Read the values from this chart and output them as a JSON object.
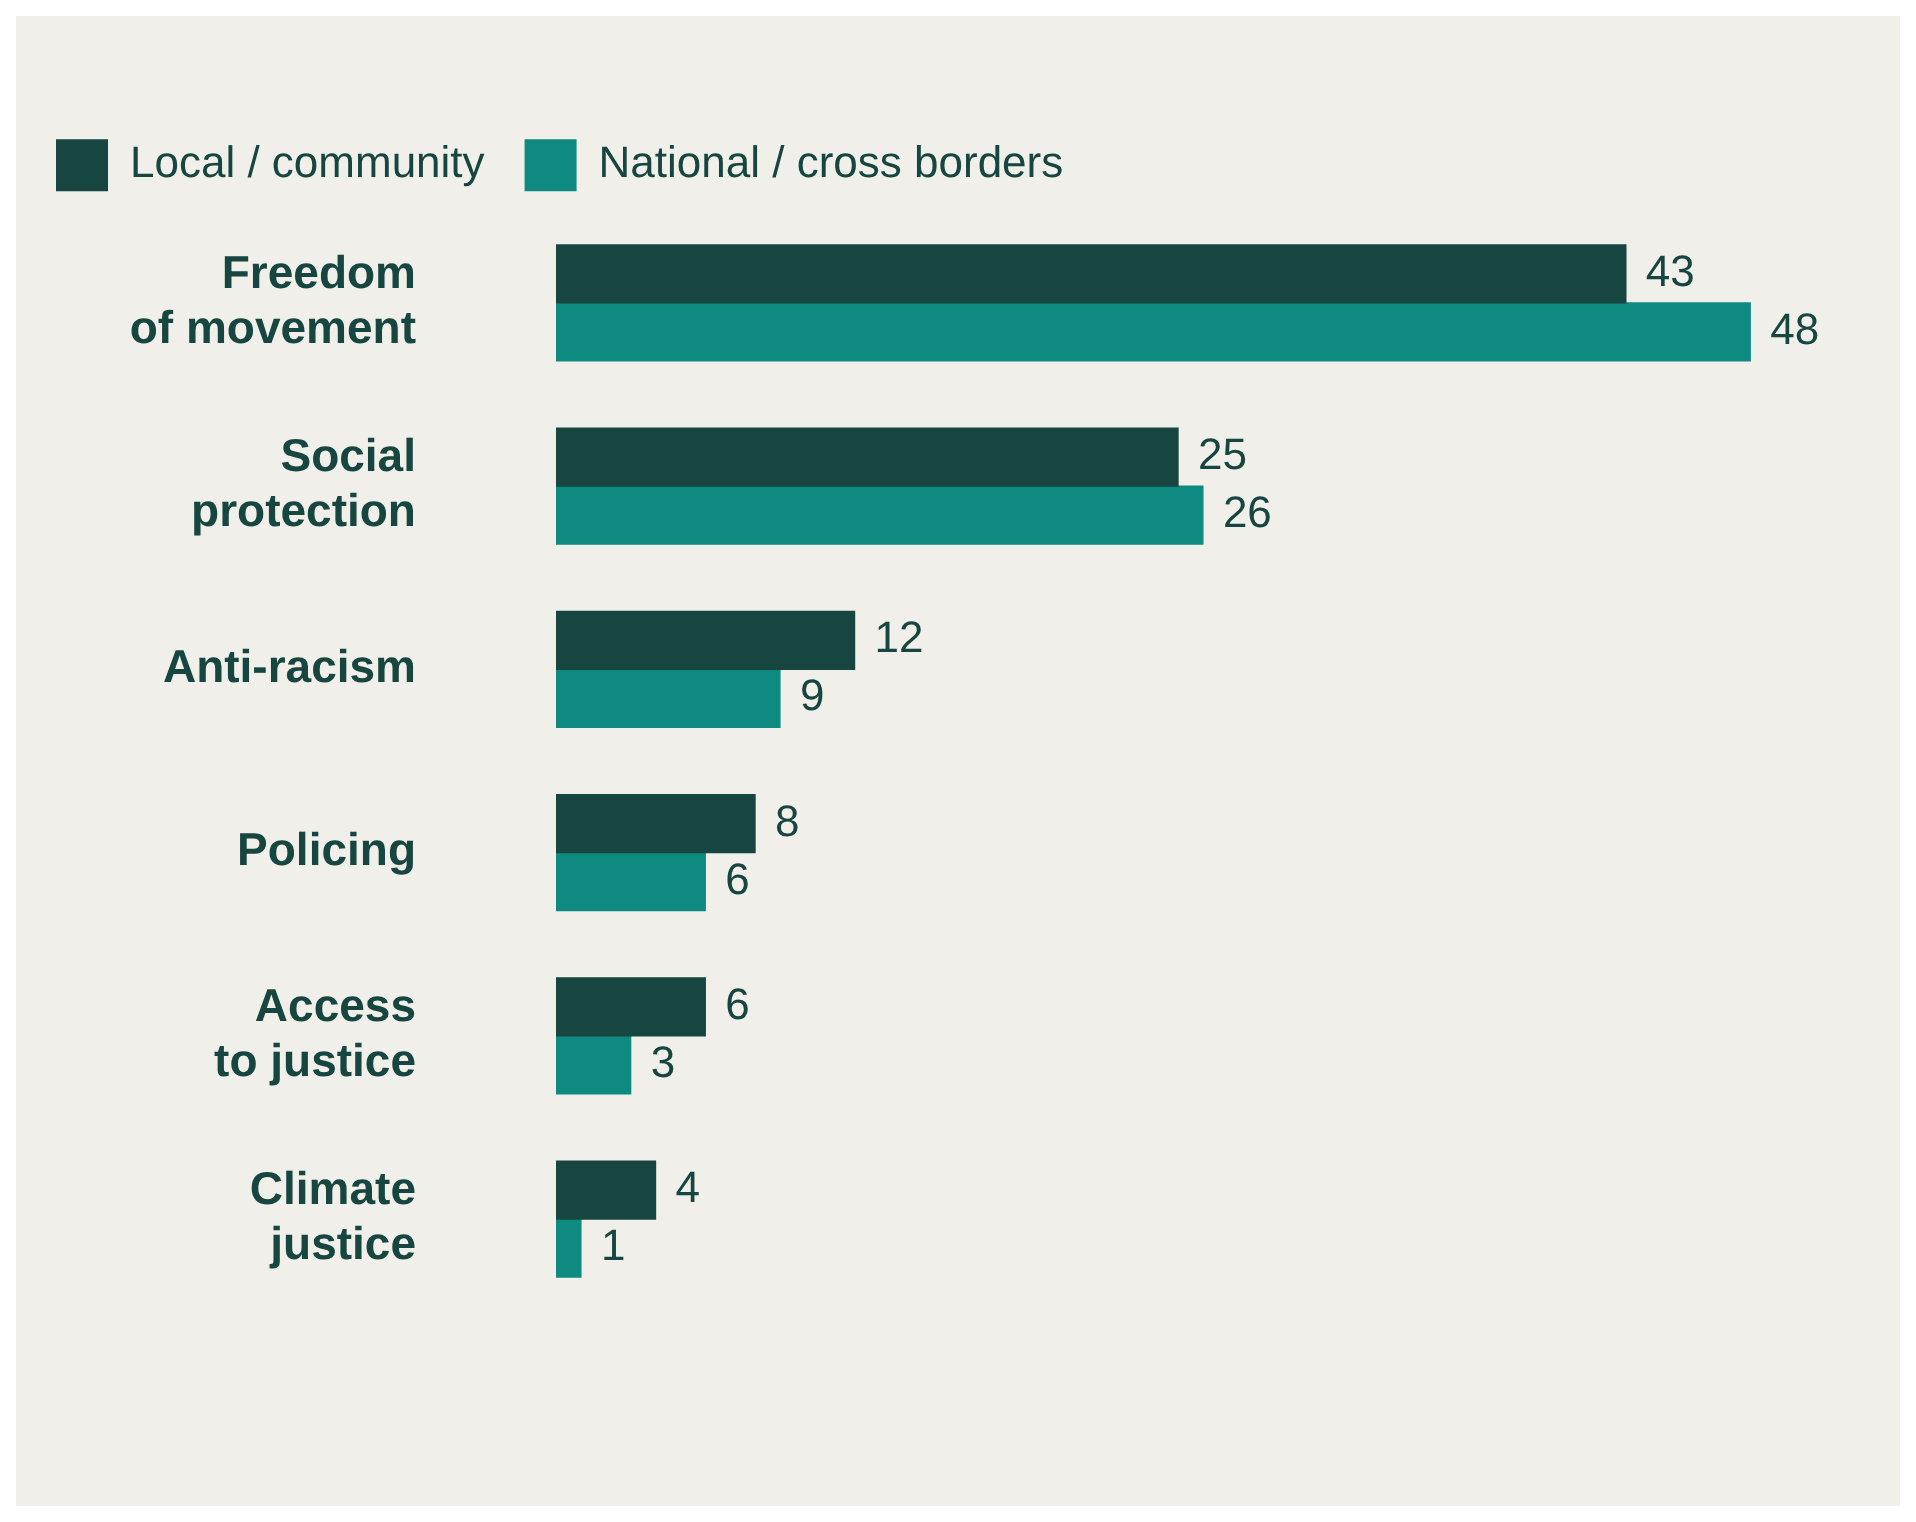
{
  "chart_data": {
    "type": "bar",
    "orientation": "horizontal",
    "categories": [
      "Freedom of movement",
      "Social protection",
      "Anti-racism",
      "Policing",
      "Access to justice",
      "Climate justice"
    ],
    "series": [
      {
        "name": "Local / community",
        "color": "#17453f",
        "values": [
          43,
          25,
          12,
          8,
          6,
          4
        ]
      },
      {
        "name": "National / cross borders",
        "color": "#0e8a80",
        "values": [
          48,
          26,
          9,
          6,
          3,
          1
        ]
      }
    ],
    "data_labels": true,
    "legend": "top left",
    "grid": false
  }
}
